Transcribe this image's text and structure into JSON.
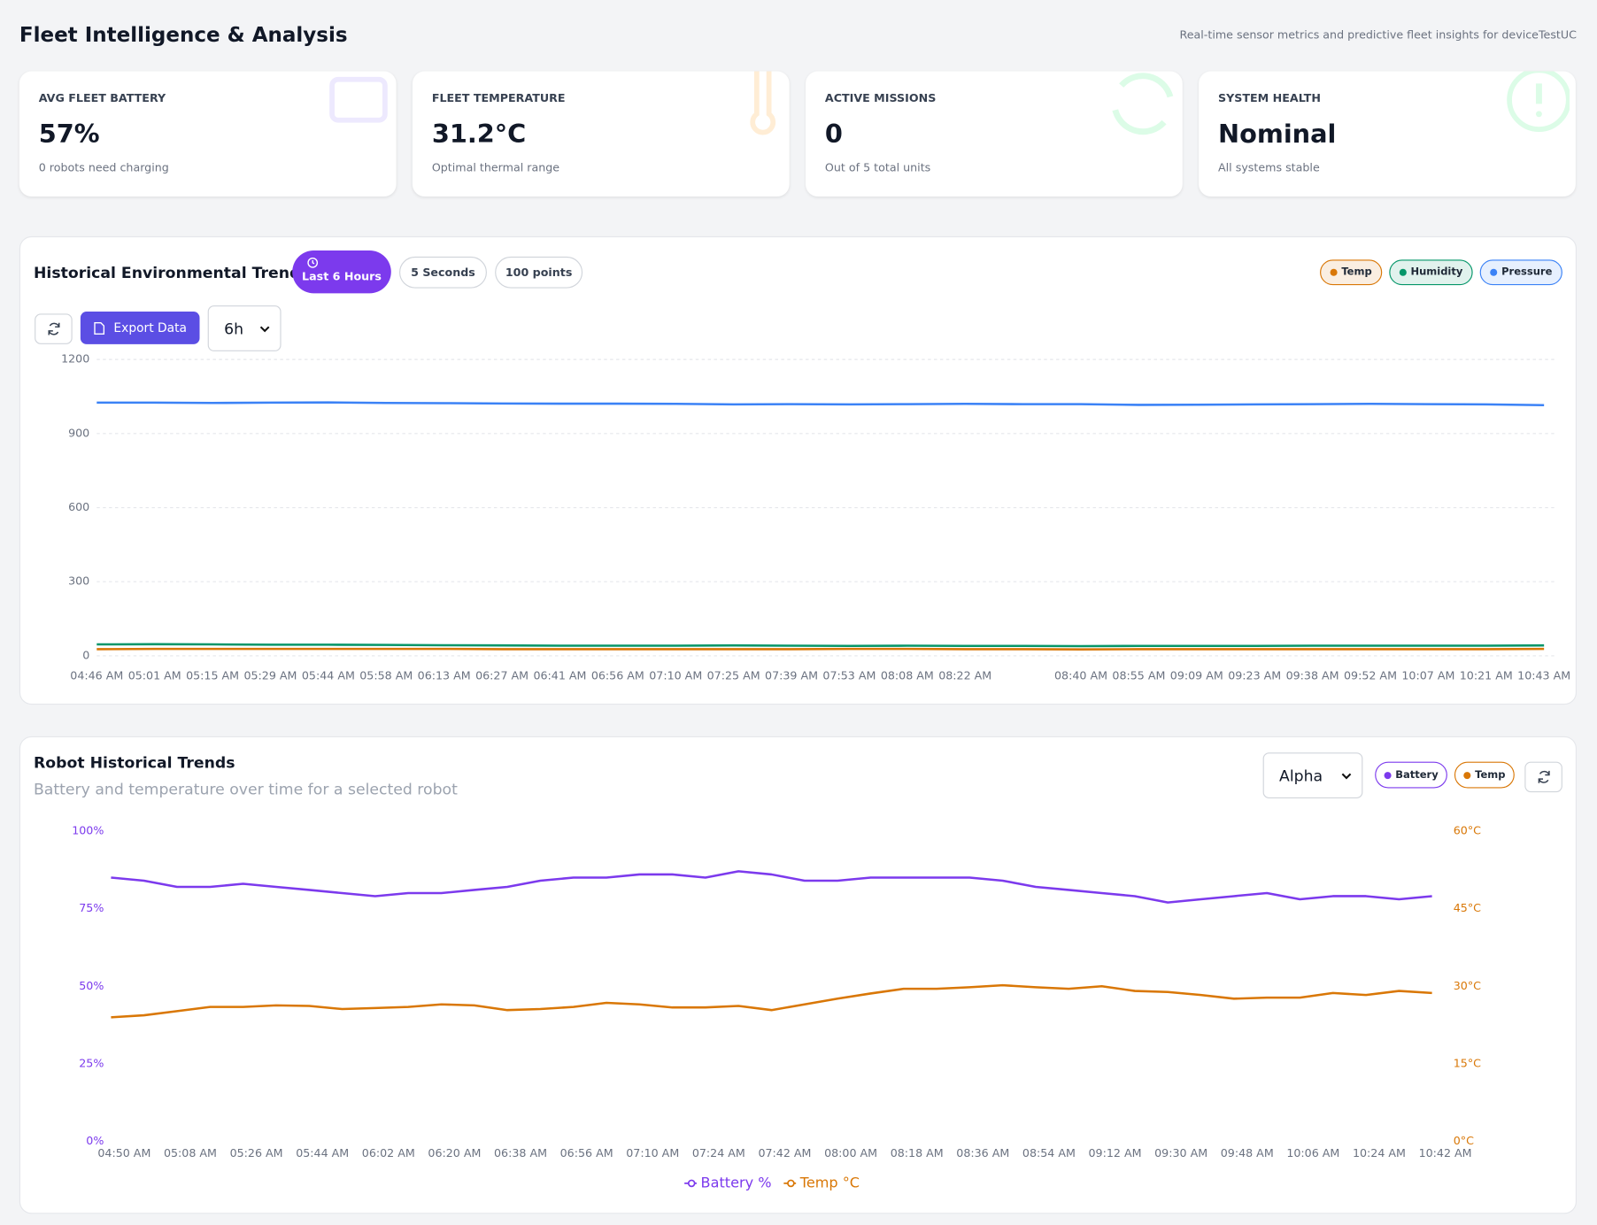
{
  "header": {
    "title": "Fleet Intelligence & Analysis",
    "subtitle": "Real-time sensor metrics and predictive fleet insights for deviceTestUC"
  },
  "cards": [
    {
      "label": "AVG FLEET BATTERY",
      "value": "57%",
      "note": "0 robots need charging"
    },
    {
      "label": "FLEET TEMPERATURE",
      "value": "31.2°C",
      "note": "Optimal thermal range"
    },
    {
      "label": "ACTIVE MISSIONS",
      "value": "0",
      "note": "Out of 5 total units"
    },
    {
      "label": "SYSTEM HEALTH",
      "value": "Nominal",
      "note": "All systems stable"
    }
  ],
  "env_panel": {
    "range_pills": [
      "Last 6 Hours",
      "5 Seconds",
      "100 points"
    ],
    "export_button": "Export Data",
    "select": "6h"
  },
  "robot_panel": {
    "subtitle": "Battery and temperature over time for a selected robot",
    "select": "Alpha",
    "toggles": [
      "Battery",
      "Temp"
    ]
  },
  "chart_data": [
    {
      "type": "line",
      "title": "Historical Environmental Trends",
      "categories": [
        "04:46 AM",
        "05:01 AM",
        "05:15 AM",
        "05:29 AM",
        "05:44 AM",
        "05:58 AM",
        "06:13 AM",
        "06:27 AM",
        "06:41 AM",
        "06:56 AM",
        "07:10 AM",
        "07:25 AM",
        "07:39 AM",
        "07:53 AM",
        "08:08 AM",
        "08:22 AM",
        null,
        "08:40 AM",
        "08:55 AM",
        "09:09 AM",
        "09:23 AM",
        "09:38 AM",
        "09:52 AM",
        "10:07 AM",
        "10:21 AM",
        "10:43 AM"
      ],
      "series": [
        {
          "name": "Temp",
          "color": "#d97706",
          "values": [
            27,
            28,
            28,
            28,
            28,
            28,
            28,
            27,
            27,
            27,
            27,
            27,
            27,
            28,
            28,
            27,
            27,
            26,
            27,
            27,
            27,
            27,
            27,
            27,
            27,
            28
          ]
        },
        {
          "name": "Humidity",
          "color": "#059669",
          "values": [
            46,
            47,
            46,
            45,
            45,
            44,
            43,
            42,
            41,
            41,
            41,
            42,
            41,
            40,
            41,
            40,
            40,
            39,
            40,
            40,
            40,
            41,
            41,
            41,
            41,
            42
          ]
        },
        {
          "name": "Pressure",
          "color": "#3b82f6",
          "values": [
            1025,
            1025,
            1024,
            1025,
            1026,
            1024,
            1023,
            1022,
            1021,
            1021,
            1020,
            1018,
            1019,
            1018,
            1019,
            1020,
            1019,
            1019,
            1016,
            1017,
            1018,
            1019,
            1020,
            1019,
            1018,
            1015
          ]
        }
      ],
      "ylim": [
        0,
        1200
      ],
      "yticks": [
        0,
        300,
        600,
        900,
        1200
      ],
      "grid": true
    },
    {
      "type": "line",
      "title": "Robot Historical Trends",
      "categories": [
        "04:50 AM",
        null,
        "05:08 AM",
        null,
        "05:26 AM",
        null,
        "05:44 AM",
        null,
        "06:02 AM",
        null,
        "06:20 AM",
        null,
        "06:38 AM",
        null,
        "06:56 AM",
        null,
        "07:10 AM",
        null,
        "07:24 AM",
        null,
        "07:42 AM",
        null,
        "08:00 AM",
        null,
        "08:18 AM",
        null,
        "08:36 AM",
        null,
        "08:54 AM",
        null,
        "09:12 AM",
        null,
        "09:30 AM",
        null,
        "09:48 AM",
        null,
        "10:06 AM",
        null,
        "10:24 AM",
        null,
        "10:42 AM"
      ],
      "series": [
        {
          "name": "Battery %",
          "color": "#7c3aed",
          "values": [
            85,
            84,
            82,
            82,
            83,
            82,
            81,
            80,
            79,
            80,
            80,
            81,
            82,
            84,
            85,
            85,
            86,
            86,
            85,
            87,
            86,
            84,
            84,
            85,
            85,
            85,
            85,
            84,
            82,
            81,
            80,
            79,
            77,
            78,
            79,
            80,
            78,
            79,
            79,
            78,
            79
          ]
        },
        {
          "name": "Temp °C",
          "color": "#d97706",
          "axis": "y2",
          "values": [
            24,
            24.4,
            25.2,
            26,
            26,
            26.3,
            26.2,
            25.6,
            25.8,
            26,
            26.5,
            26.3,
            25.4,
            25.6,
            26,
            26.8,
            26.5,
            25.9,
            25.9,
            26.2,
            25.4,
            26.5,
            27.6,
            28.6,
            29.5,
            29.5,
            29.8,
            30.2,
            29.8,
            29.5,
            30,
            29.1,
            28.9,
            28.3,
            27.6,
            27.8,
            27.8,
            28.7,
            28.3,
            29.1,
            28.7
          ]
        }
      ],
      "ylim": [
        0,
        100
      ],
      "yticks": [
        {
          "value": 0,
          "label": "0%"
        },
        {
          "value": 25,
          "label": "25%"
        },
        {
          "value": 50,
          "label": "50%"
        },
        {
          "value": 75,
          "label": "75%"
        },
        {
          "value": 100,
          "label": "100%"
        }
      ],
      "y2lim": [
        0,
        60
      ],
      "y2ticks": [
        {
          "value": 0,
          "label": "0°C"
        },
        {
          "value": 15,
          "label": "15°C"
        },
        {
          "value": 30,
          "label": "30°C"
        },
        {
          "value": 45,
          "label": "45°C"
        },
        {
          "value": 60,
          "label": "60°C"
        }
      ],
      "grid": false
    }
  ]
}
